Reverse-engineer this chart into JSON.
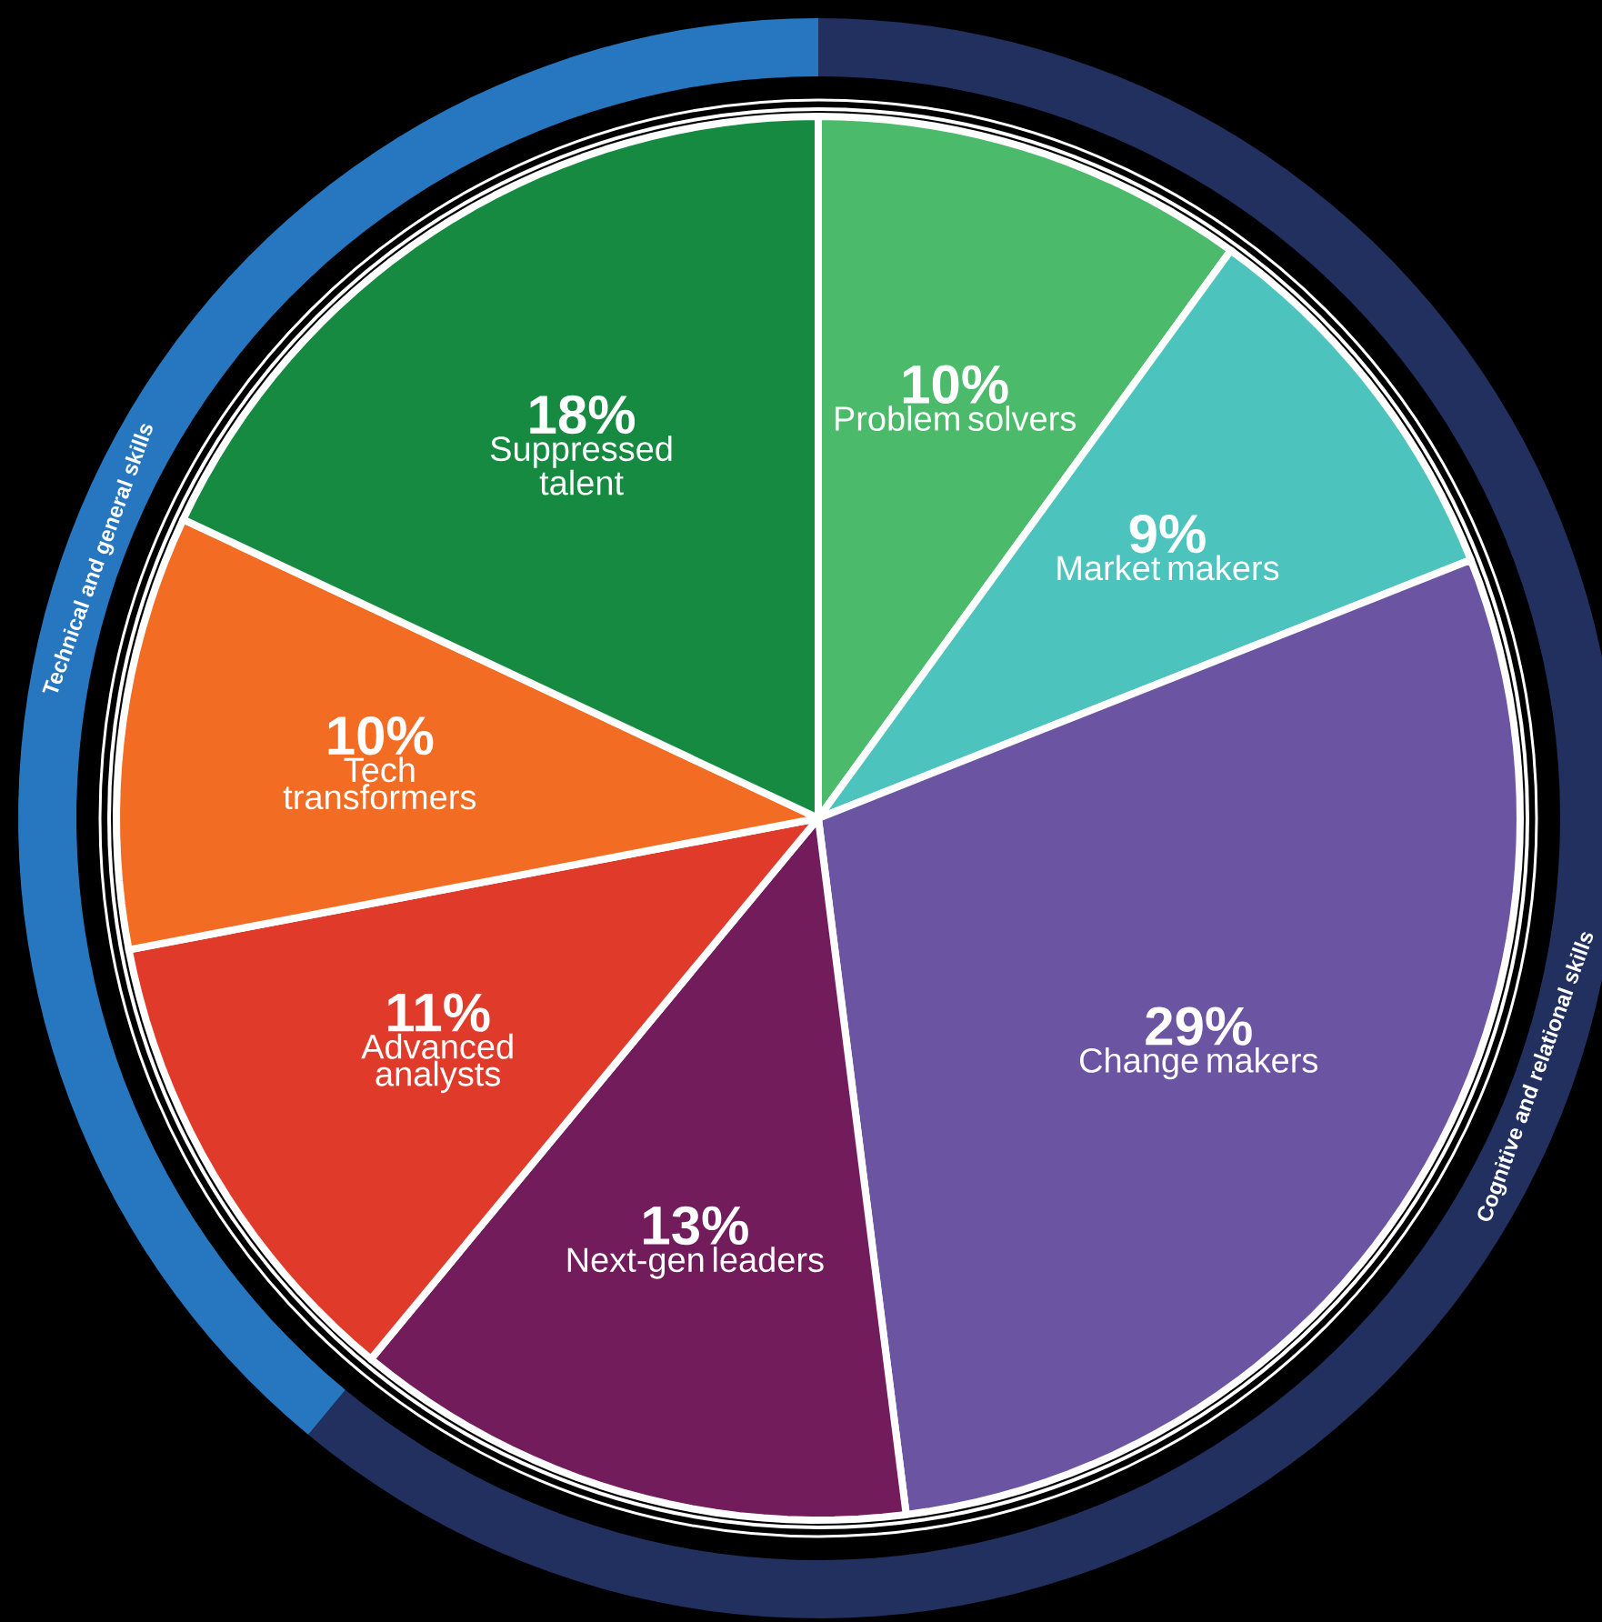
{
  "chart_data": [
    {
      "type": "pie",
      "categories": [
        "Problem solvers",
        "Market makers",
        "Change makers",
        "Next-gen leaders",
        "Advanced analysts",
        "Tech transformers",
        "Suppressed talent"
      ],
      "values": [
        10,
        9,
        29,
        13,
        11,
        10,
        18
      ],
      "value_labels": [
        "10%",
        "9%",
        "29%",
        "13%",
        "11%",
        "10%",
        "18%"
      ],
      "colors": [
        "#4cba6b",
        "#4dc3bd",
        "#6b55a3",
        "#721c5c",
        "#e03a2b",
        "#f26c23",
        "#168a40"
      ]
    },
    {
      "type": "donut",
      "categories": [
        "Cognitive and relational skills",
        "Technical and general skills"
      ],
      "values": [
        61,
        39
      ],
      "colors": [
        "#21305f",
        "#2777c0"
      ]
    }
  ]
}
